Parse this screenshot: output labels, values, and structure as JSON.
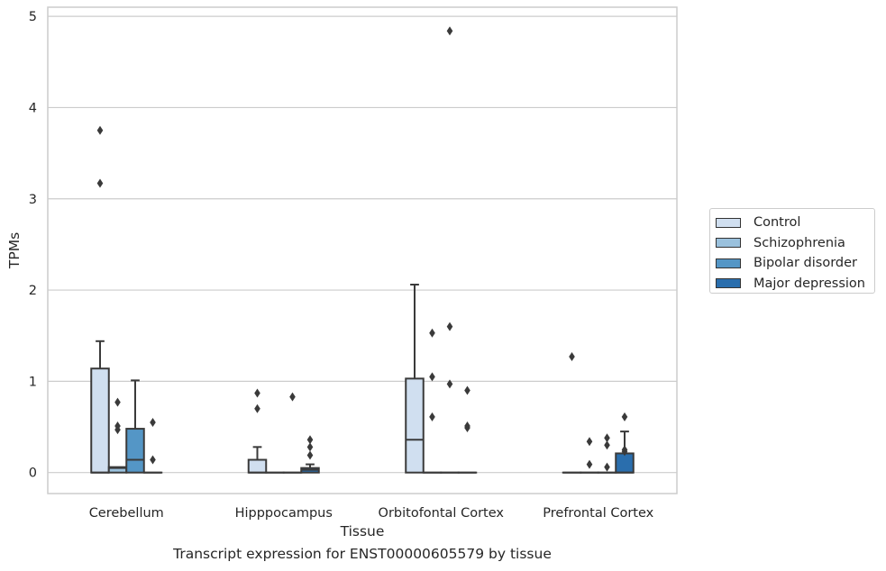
{
  "chart_data": {
    "type": "box",
    "caption": "Transcript expression for ENST00000605579 by tissue",
    "xlabel": "Tissue",
    "ylabel": "TPMs",
    "ylim": [
      -0.23,
      5.1
    ],
    "yticks": [
      0,
      1,
      2,
      3,
      4,
      5
    ],
    "grid": true,
    "legend_position": "right",
    "categories": [
      "Cerebellum",
      "Hipppocampus",
      "Orbitofontal Cortex",
      "Prefrontal Cortex"
    ],
    "series": [
      {
        "name": "Control",
        "color": "#d0dff0",
        "boxes": [
          {
            "min": 0,
            "q1": 0,
            "median": 0,
            "q3": 1.14,
            "max": 1.44,
            "outliers": [
              3.17,
              3.75
            ]
          },
          {
            "min": 0,
            "q1": 0,
            "median": 0,
            "q3": 0.14,
            "max": 0.28,
            "outliers": [
              0.7,
              0.87
            ]
          },
          {
            "min": 0,
            "q1": 0,
            "median": 0.36,
            "q3": 1.03,
            "max": 2.06,
            "outliers": []
          },
          {
            "min": 0,
            "q1": 0,
            "median": 0,
            "q3": 0,
            "max": 0,
            "outliers": [
              1.27
            ]
          }
        ]
      },
      {
        "name": "Schizophrenia",
        "color": "#9ac1dd",
        "boxes": [
          {
            "min": 0,
            "q1": 0,
            "median": 0.05,
            "q3": 0.06,
            "max": 0.06,
            "outliers": [
              0.47,
              0.51,
              0.77
            ]
          },
          {
            "min": 0,
            "q1": 0,
            "median": 0,
            "q3": 0,
            "max": 0,
            "outliers": []
          },
          {
            "min": 0,
            "q1": 0,
            "median": 0,
            "q3": 0,
            "max": 0,
            "outliers": [
              0.61,
              1.05,
              1.53
            ]
          },
          {
            "min": 0,
            "q1": 0,
            "median": 0,
            "q3": 0,
            "max": 0,
            "outliers": [
              0.09,
              0.34
            ]
          }
        ]
      },
      {
        "name": "Bipolar disorder",
        "color": "#5496c6",
        "boxes": [
          {
            "min": 0,
            "q1": 0,
            "median": 0.14,
            "q3": 0.48,
            "max": 1.01,
            "outliers": []
          },
          {
            "min": 0,
            "q1": 0,
            "median": 0,
            "q3": 0,
            "max": 0,
            "outliers": [
              0.83
            ]
          },
          {
            "min": 0,
            "q1": 0,
            "median": 0,
            "q3": 0,
            "max": 0,
            "outliers": [
              0.97,
              1.6,
              4.84
            ]
          },
          {
            "min": 0,
            "q1": 0,
            "median": 0,
            "q3": 0,
            "max": 0,
            "outliers": [
              0.06,
              0.3,
              0.38
            ]
          }
        ]
      },
      {
        "name": "Major depression",
        "color": "#2a6ead",
        "boxes": [
          {
            "min": 0,
            "q1": 0,
            "median": 0,
            "q3": 0,
            "max": 0,
            "outliers": [
              0.14,
              0.55
            ]
          },
          {
            "min": 0,
            "q1": 0,
            "median": 0.03,
            "q3": 0.05,
            "max": 0.09,
            "outliers": [
              0.19,
              0.28,
              0.36
            ]
          },
          {
            "min": 0,
            "q1": 0,
            "median": 0,
            "q3": 0,
            "max": 0,
            "outliers": [
              0.49,
              0.51,
              0.9
            ]
          },
          {
            "min": 0,
            "q1": 0,
            "median": 0,
            "q3": 0.21,
            "max": 0.45,
            "outliers": [
              0.23,
              0.25,
              0.61
            ]
          }
        ]
      }
    ]
  }
}
